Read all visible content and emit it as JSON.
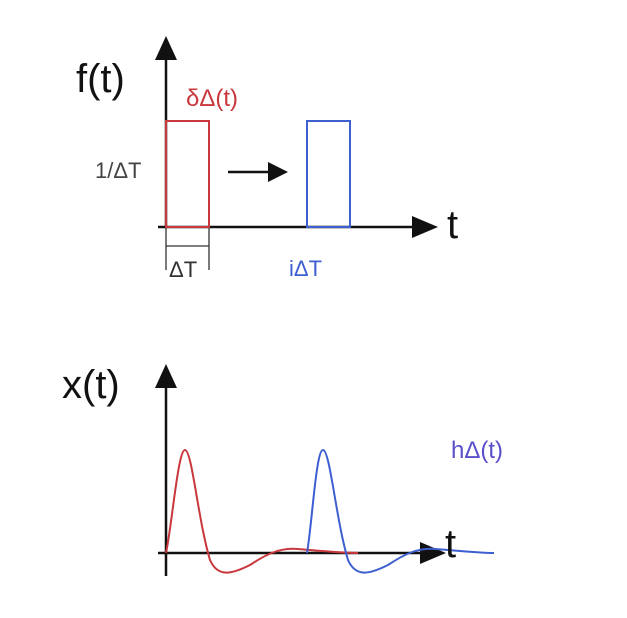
{
  "colors": {
    "axis": "#111111",
    "red": "#c8383c",
    "blue": "#3d5fd0",
    "purple": "#5a4fc9",
    "gray": "#444444"
  },
  "top_plot": {
    "y_label": "f(t)",
    "x_label": "t",
    "pulse_label": "δΔ(t)",
    "height_label": "1/ΔT",
    "width_label": "ΔT",
    "shifted_label": "iΔT"
  },
  "bottom_plot": {
    "y_label": "x(t)",
    "x_label": "t",
    "response_label": "hΔ(t)"
  },
  "icons": {
    "shift_arrow": "right-arrow-icon"
  }
}
